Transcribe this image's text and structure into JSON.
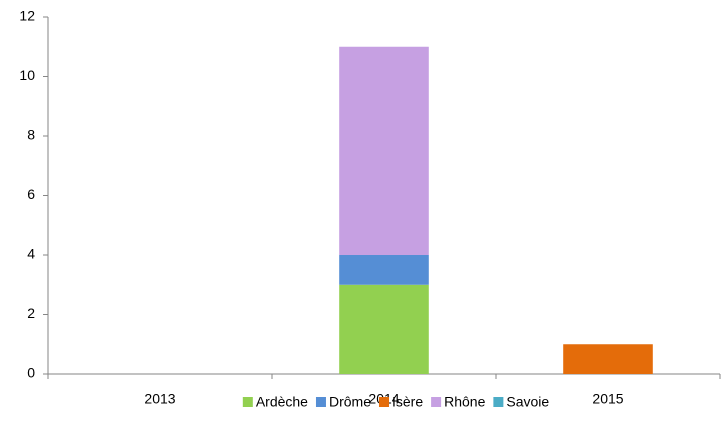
{
  "chart_data": {
    "type": "stacked-bar",
    "categories": [
      "2013",
      "2014",
      "2015"
    ],
    "series": [
      {
        "name": "Ardèche",
        "color": "#92d050",
        "values": [
          0,
          3,
          0
        ]
      },
      {
        "name": "Drôme",
        "color": "#558ed5",
        "values": [
          0,
          1,
          0
        ]
      },
      {
        "name": "Isère",
        "color": "#e46c0a",
        "values": [
          0,
          0,
          1
        ]
      },
      {
        "name": "Rhône",
        "color": "#c6a0e2",
        "values": [
          0,
          7,
          0
        ]
      },
      {
        "name": "Savoie",
        "color": "#4bacc6",
        "values": [
          0,
          0,
          0
        ]
      }
    ],
    "ylim": [
      0,
      12
    ],
    "yticks": [
      0,
      2,
      4,
      6,
      8,
      10,
      12
    ],
    "grid": false,
    "legend": "bottom"
  }
}
